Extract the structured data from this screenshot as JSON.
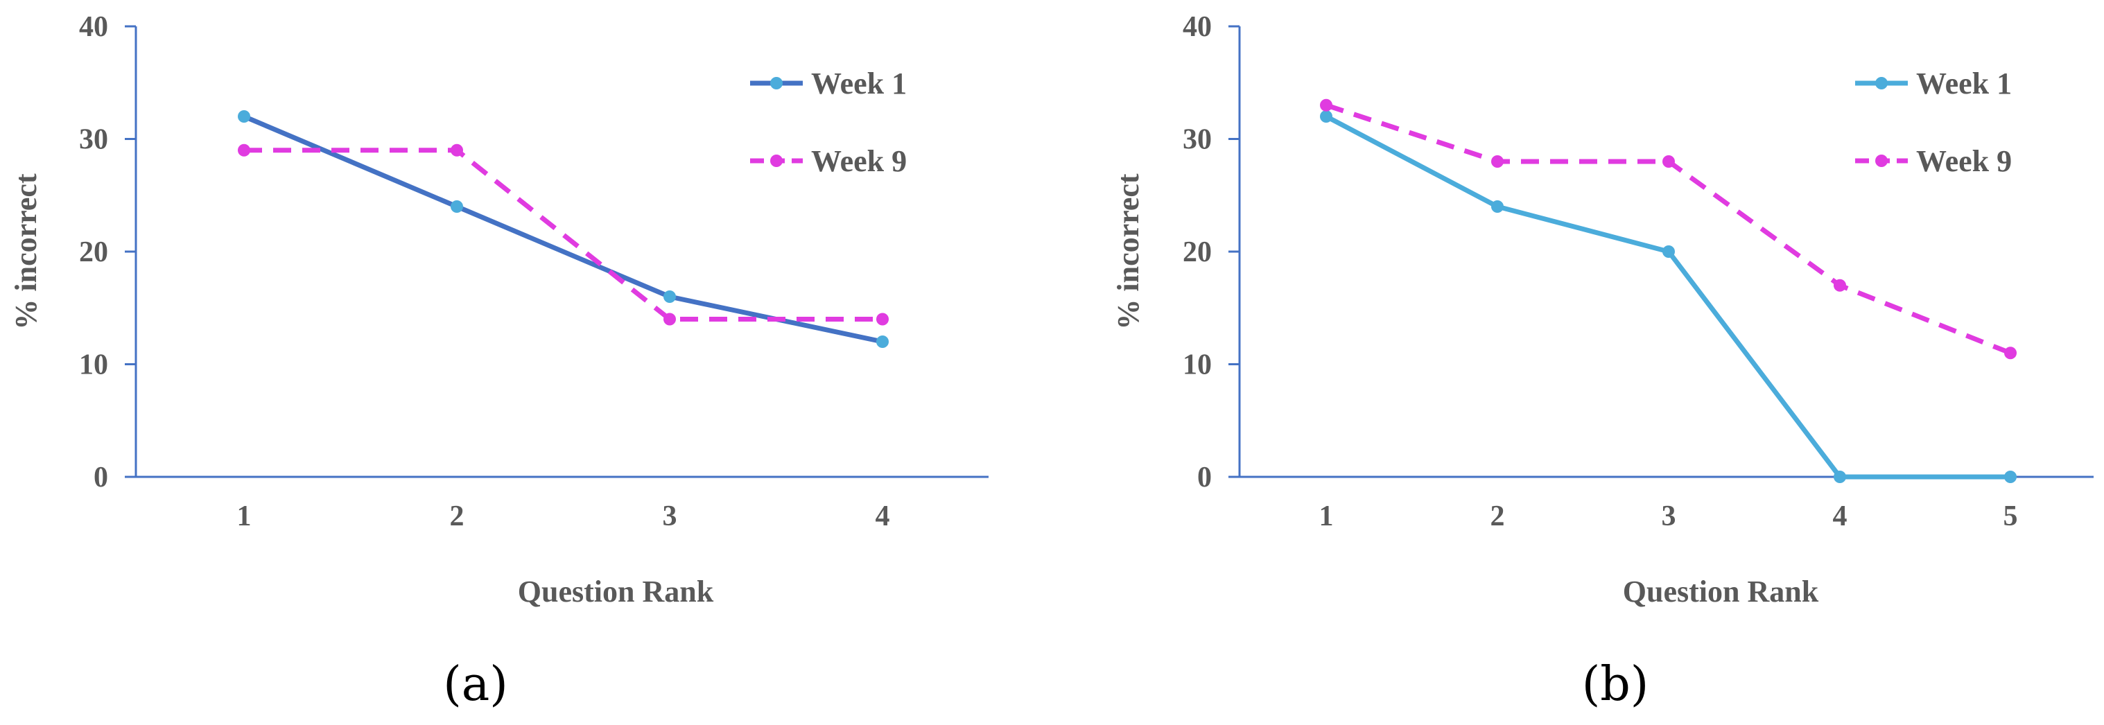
{
  "chart_data": [
    {
      "type": "line",
      "caption": "(a)",
      "x": [
        1,
        2,
        3,
        4
      ],
      "xticks": [
        "1",
        "2",
        "3",
        "4"
      ],
      "ylim": [
        0,
        40
      ],
      "yticks": [
        "0",
        "10",
        "20",
        "30",
        "40"
      ],
      "xlabel": "Question Rank",
      "ylabel": "% incorrect",
      "series": [
        {
          "name": "Week 1",
          "values": [
            32,
            24,
            16,
            12
          ],
          "line_color": "#4472C4",
          "marker_color": "#4BACDB",
          "dashed": false
        },
        {
          "name": "Week 9",
          "values": [
            29,
            29,
            14,
            14
          ],
          "line_color": "#E03BE0",
          "marker_color": "#E03BE0",
          "dashed": true
        }
      ]
    },
    {
      "type": "line",
      "caption": "(b)",
      "x": [
        1,
        2,
        3,
        4,
        5
      ],
      "xticks": [
        "1",
        "2",
        "3",
        "4",
        "5"
      ],
      "ylim": [
        0,
        40
      ],
      "yticks": [
        "0",
        "10",
        "20",
        "30",
        "40"
      ],
      "xlabel": "Question Rank",
      "ylabel": "% incorrect",
      "series": [
        {
          "name": "Week 1",
          "values": [
            32,
            24,
            20,
            0,
            0
          ],
          "line_color": "#4BACDB",
          "marker_color": "#4BACDB",
          "dashed": false
        },
        {
          "name": "Week 9",
          "values": [
            33,
            28,
            28,
            17,
            11
          ],
          "line_color": "#E03BE0",
          "marker_color": "#E03BE0",
          "dashed": true
        }
      ]
    }
  ],
  "colors": {
    "axis": "#4472C4",
    "text": "#595959"
  }
}
